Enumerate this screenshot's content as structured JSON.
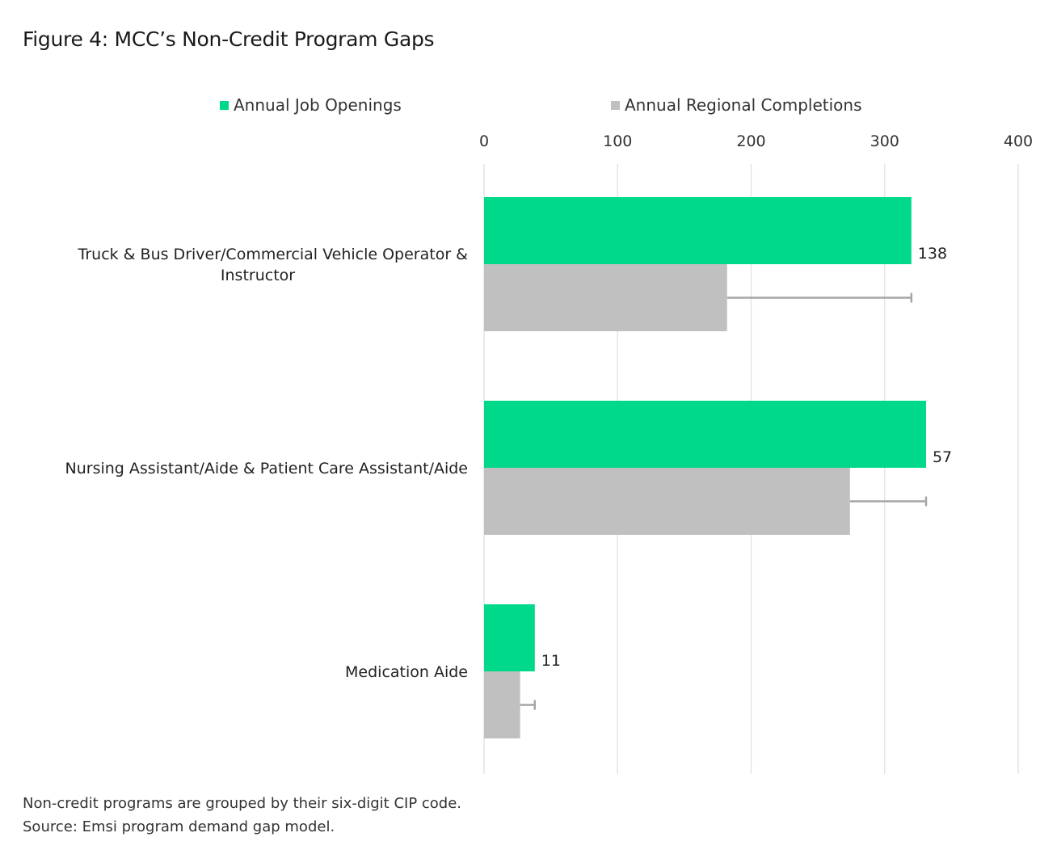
{
  "title": "Figure 4: MCC’s Non-Credit Program Gaps",
  "legend": {
    "openings": "Annual Job Openings",
    "completions": "Annual Regional Completions"
  },
  "footnotes": {
    "line1": "Non-credit programs are grouped by their six-digit CIP code.",
    "line2": "Source: Emsi program demand gap model."
  },
  "colors": {
    "openings": "#00d98a",
    "completions": "#c0c0c0",
    "grid": "#e4e4e4",
    "error_bar": "#a6a6a6"
  },
  "chart_data": {
    "type": "bar",
    "orientation": "horizontal",
    "title": "Figure 4: MCC’s Non-Credit Program Gaps",
    "categories": [
      [
        "Truck & Bus Driver/Commercial Vehicle Operator &",
        "Instructor"
      ],
      [
        "Nursing Assistant/Aide & Patient Care Assistant/Aide"
      ],
      [
        "Medication Aide"
      ]
    ],
    "series": [
      {
        "name": "Annual Job Openings",
        "values": [
          320,
          331,
          38
        ]
      },
      {
        "name": "Annual Regional Completions",
        "values": [
          182,
          274,
          27
        ]
      }
    ],
    "gap_labels": [
      "138",
      "57",
      "11"
    ],
    "xlim": [
      0,
      400
    ],
    "xticks": [
      0,
      100,
      200,
      300,
      400
    ],
    "axis_position": "top",
    "grid": true,
    "legend_position": "top"
  }
}
